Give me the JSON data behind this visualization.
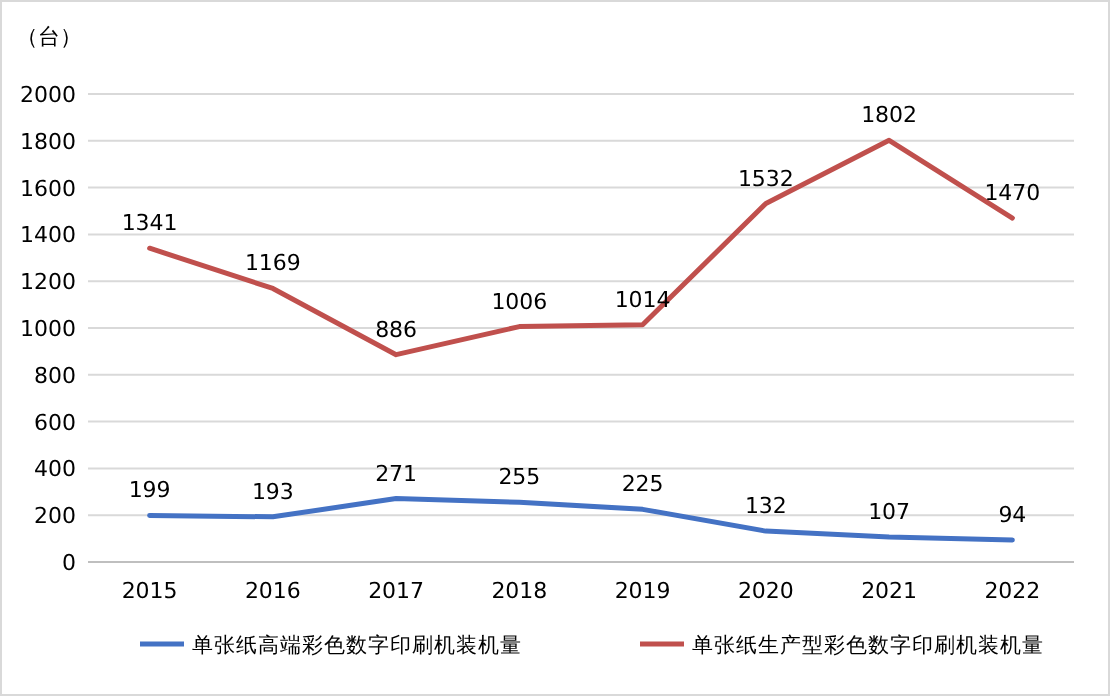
{
  "chart_data": {
    "type": "line",
    "ylabel": "（台）",
    "categories": [
      "2015",
      "2016",
      "2017",
      "2018",
      "2019",
      "2020",
      "2021",
      "2022"
    ],
    "series": [
      {
        "name": "单张纸高端彩色数字印刷机装机量",
        "color": "#4472c4",
        "values": [
          199,
          193,
          271,
          255,
          225,
          132,
          107,
          94
        ]
      },
      {
        "name": "单张纸生产型彩色数字印刷机装机量",
        "color": "#c0504d",
        "values": [
          1341,
          1169,
          886,
          1006,
          1014,
          1532,
          1802,
          1470
        ]
      }
    ],
    "ylim": [
      0,
      2000
    ],
    "yticks": [
      0,
      200,
      400,
      600,
      800,
      1000,
      1200,
      1400,
      1600,
      1800,
      2000
    ],
    "grid": "y",
    "legend": "bottom",
    "data_labels": true
  }
}
